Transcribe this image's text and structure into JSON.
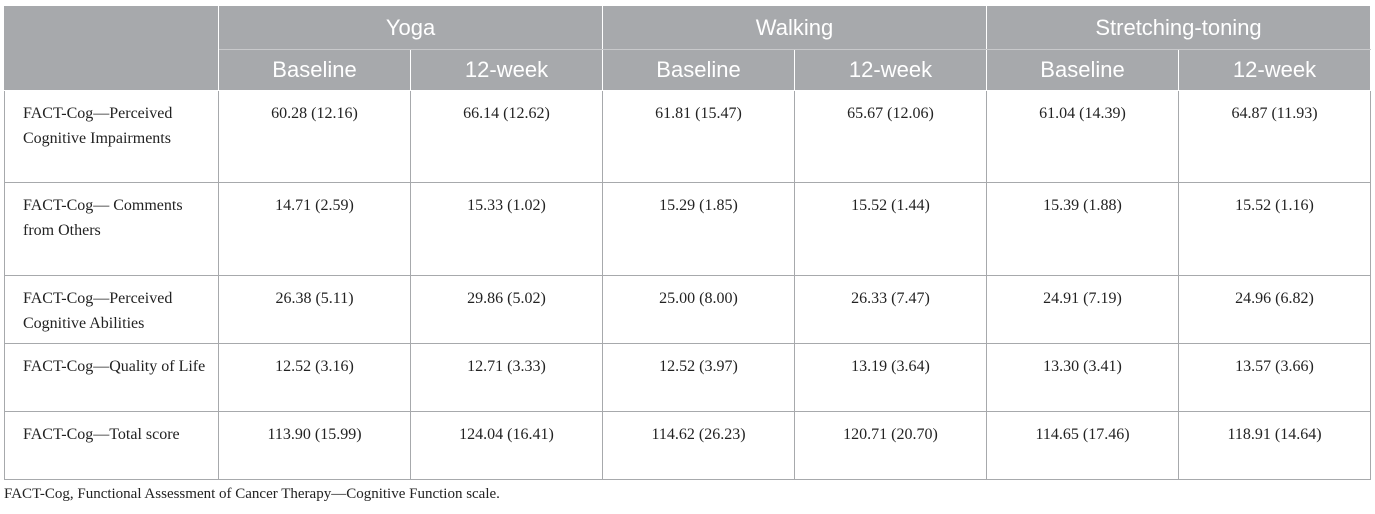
{
  "table": {
    "groups": [
      "Yoga",
      "Walking",
      "Stretching-toning"
    ],
    "subheaders": [
      "Baseline",
      "12-week",
      "Baseline",
      "12-week",
      "Baseline",
      "12-week"
    ],
    "rows": [
      {
        "label": "FACT-Cog—Perceived Cognitive Impairments",
        "values": [
          "60.28 (12.16)",
          "66.14 (12.62)",
          "61.81 (15.47)",
          "65.67 (12.06)",
          "61.04 (14.39)",
          "64.87 (11.93)"
        ]
      },
      {
        "label": "FACT-Cog— Comments from Others",
        "values": [
          "14.71 (2.59)",
          "15.33 (1.02)",
          "15.29 (1.85)",
          "15.52 (1.44)",
          "15.39 (1.88)",
          "15.52 (1.16)"
        ]
      },
      {
        "label": "FACT-Cog—Perceived Cognitive Abilities",
        "values": [
          "26.38 (5.11)",
          "29.86 (5.02)",
          "25.00 (8.00)",
          "26.33 (7.47)",
          "24.91 (7.19)",
          "24.96 (6.82)"
        ]
      },
      {
        "label": "FACT-Cog—Quality of Life",
        "values": [
          "12.52 (3.16)",
          "12.71 (3.33)",
          "12.52 (3.97)",
          "13.19 (3.64)",
          "13.30 (3.41)",
          "13.57 (3.66)"
        ]
      },
      {
        "label": "FACT-Cog—Total score",
        "values": [
          "113.90 (15.99)",
          "124.04 (16.41)",
          "114.62 (26.23)",
          "120.71 (20.70)",
          "114.65 (17.46)",
          "118.91 (14.64)"
        ]
      }
    ],
    "footnote": "FACT-Cog, Functional Assessment of Cancer Therapy—Cognitive Function scale.",
    "colors": {
      "header_bg": "#a7a9ac",
      "header_text": "#ffffff",
      "border": "#a7a9ac"
    }
  }
}
